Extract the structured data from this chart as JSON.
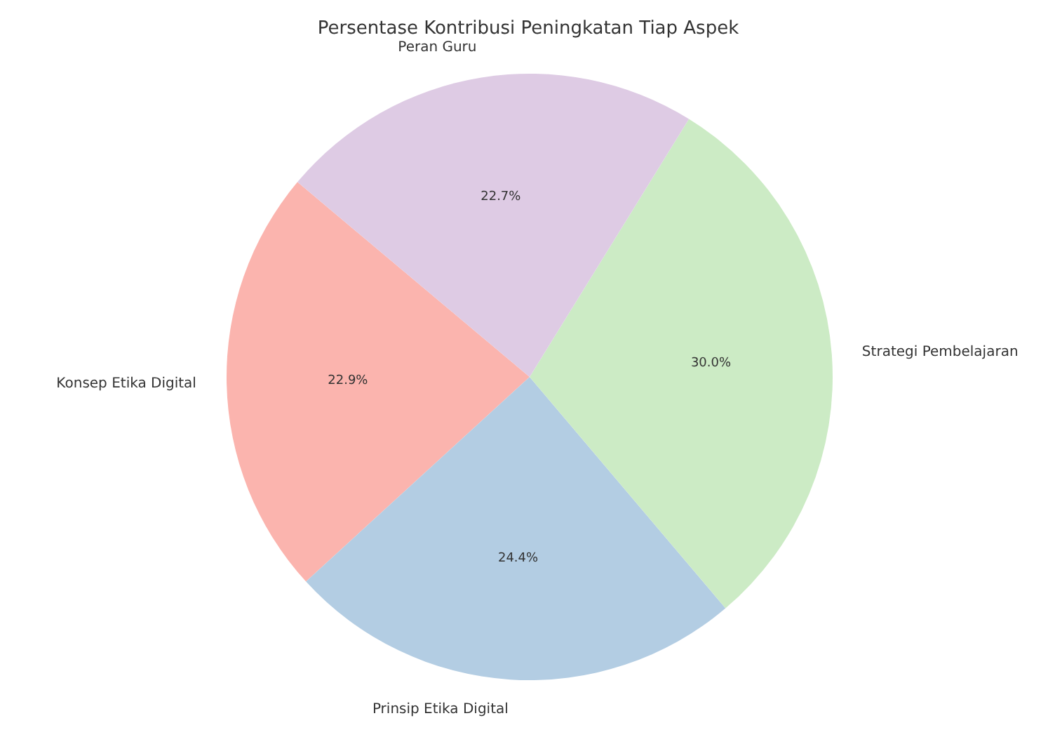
{
  "chart_data": {
    "type": "pie",
    "title": "Persentase Kontribusi Peningkatan Tiap Aspek",
    "categories": [
      "Konsep Etika Digital",
      "Prinsip Etika Digital",
      "Strategi Pembelajaran",
      "Peran Guru"
    ],
    "values": [
      22.9,
      24.4,
      30.0,
      22.7
    ],
    "value_labels": [
      "22.9%",
      "24.4%",
      "30.0%",
      "22.7%"
    ],
    "colors": [
      "#fbb4ae",
      "#b3cde3",
      "#ccebc5",
      "#decbe4"
    ]
  }
}
